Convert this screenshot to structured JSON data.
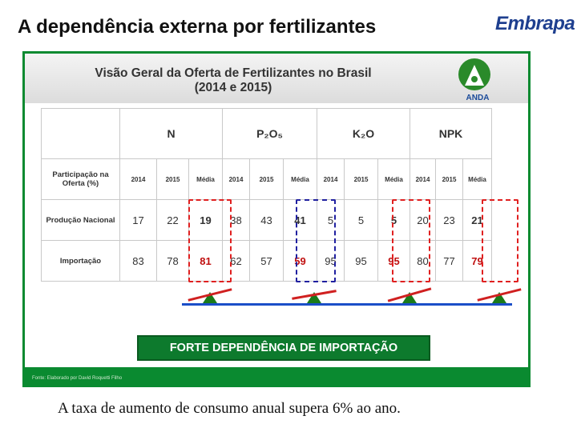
{
  "slide": {
    "title": "A dependência externa por fertilizantes",
    "logo_text": "Embrapa",
    "caption": "A taxa de aumento de consumo anual supera 6% ao ano."
  },
  "panel": {
    "title_line1": "Visão Geral da Oferta de Fertilizantes no Brasil",
    "title_line2": "(2014 e 2015)",
    "anda_label": "ANDA",
    "source": "Fonte: Elaborado por David Roquetti Filho",
    "banner": "FORTE DEPENDÊNCIA DE IMPORTAÇÃO"
  },
  "table": {
    "groups": [
      "N",
      "P₂O₅",
      "K₂O",
      "NPK"
    ],
    "subheaders": [
      "2014",
      "2015",
      "Média"
    ],
    "row_header": "Participação na Oferta (%)",
    "rows": [
      {
        "label": "Produção Nacional",
        "values": [
          "17",
          "22",
          "19",
          "38",
          "43",
          "41",
          "5",
          "5",
          "5",
          "20",
          "23",
          "21"
        ]
      },
      {
        "label": "Importação",
        "values": [
          "83",
          "78",
          "81",
          "62",
          "57",
          "59",
          "95",
          "95",
          "95",
          "80",
          "77",
          "79"
        ]
      }
    ]
  },
  "colors": {
    "panel_green": "#0a8a30",
    "highlight_red": "#e02020",
    "highlight_blue": "#2020a0",
    "scale_blue": "#1a4ec8",
    "title_blue": "#1e3f8f"
  }
}
